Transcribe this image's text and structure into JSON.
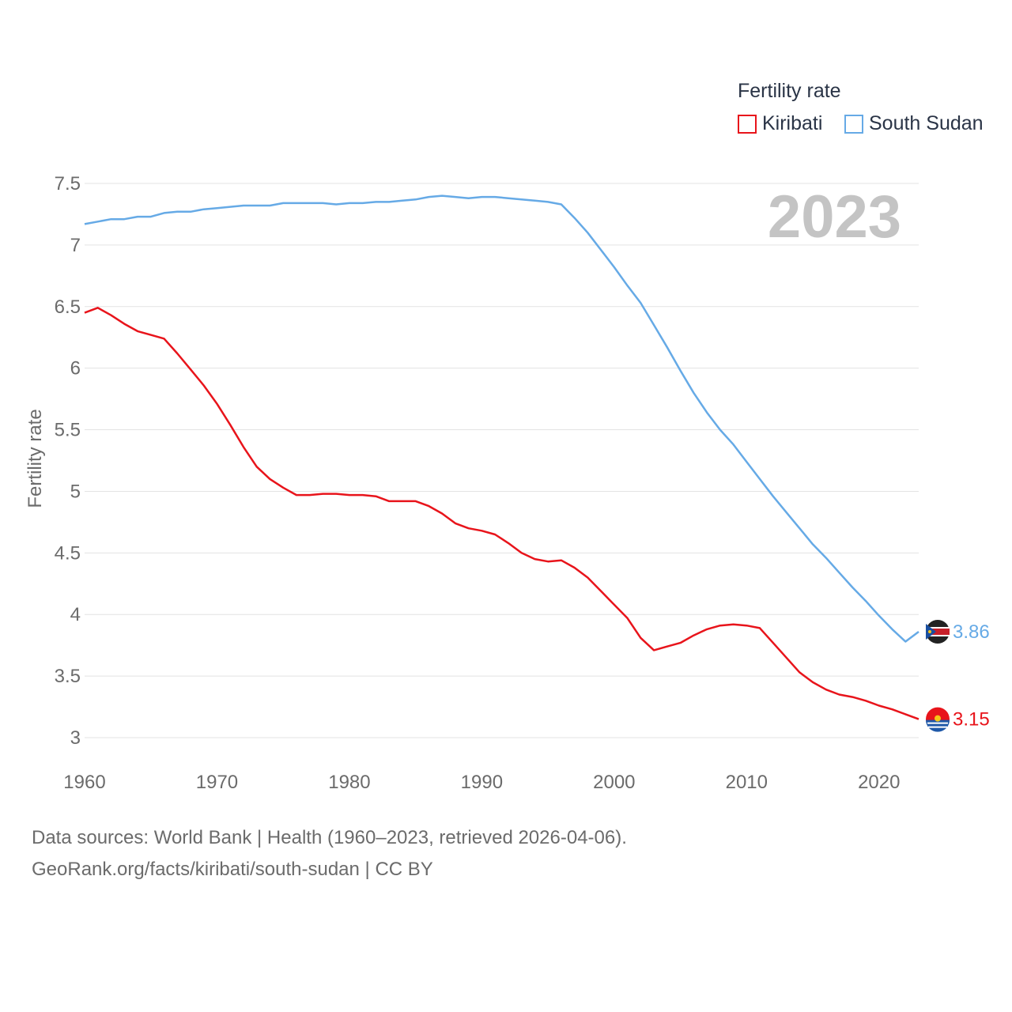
{
  "legend": {
    "title": "Fertility rate",
    "items": [
      {
        "label": "Kiribati",
        "color": "#e8141b"
      },
      {
        "label": "South Sudan",
        "color": "#66aae6"
      }
    ]
  },
  "year_label": "2023",
  "footer": {
    "line1": "Data sources: World Bank | Health (1960–2023, retrieved 2026-04-06).",
    "line2": "GeoRank.org/facts/kiribati/south-sudan | CC BY"
  },
  "chart_data": {
    "type": "line",
    "title": "Fertility rate",
    "xlabel": "",
    "ylabel": "Fertility rate",
    "xlim": [
      1960,
      2023
    ],
    "ylim": [
      3,
      7.5
    ],
    "x_ticks": [
      1960,
      1970,
      1980,
      1990,
      2000,
      2010,
      2020
    ],
    "y_ticks": [
      3,
      3.5,
      4,
      4.5,
      5,
      5.5,
      6,
      6.5,
      7,
      7.5
    ],
    "y_tick_labels": [
      "3",
      "3.5",
      "4",
      "4.5",
      "5",
      "5.5",
      "6",
      "6.5",
      "7",
      "7.5"
    ],
    "x": [
      1960,
      1961,
      1962,
      1963,
      1964,
      1965,
      1966,
      1967,
      1968,
      1969,
      1970,
      1971,
      1972,
      1973,
      1974,
      1975,
      1976,
      1977,
      1978,
      1979,
      1980,
      1981,
      1982,
      1983,
      1984,
      1985,
      1986,
      1987,
      1988,
      1989,
      1990,
      1991,
      1992,
      1993,
      1994,
      1995,
      1996,
      1997,
      1998,
      1999,
      2000,
      2001,
      2002,
      2003,
      2004,
      2005,
      2006,
      2007,
      2008,
      2009,
      2010,
      2011,
      2012,
      2013,
      2014,
      2015,
      2016,
      2017,
      2018,
      2019,
      2020,
      2021,
      2022,
      2023
    ],
    "series": [
      {
        "name": "Kiribati",
        "color": "#e8141b",
        "end_label": "3.15",
        "values": [
          6.45,
          6.49,
          6.43,
          6.36,
          6.3,
          6.27,
          6.24,
          6.12,
          5.99,
          5.86,
          5.71,
          5.54,
          5.36,
          5.2,
          5.1,
          5.03,
          4.97,
          4.97,
          4.98,
          4.98,
          4.97,
          4.97,
          4.96,
          4.92,
          4.92,
          4.92,
          4.88,
          4.82,
          4.74,
          4.7,
          4.68,
          4.65,
          4.58,
          4.5,
          4.45,
          4.43,
          4.44,
          4.38,
          4.3,
          4.19,
          4.08,
          3.97,
          3.81,
          3.71,
          3.74,
          3.77,
          3.83,
          3.88,
          3.91,
          3.92,
          3.91,
          3.89,
          3.77,
          3.65,
          3.53,
          3.45,
          3.39,
          3.35,
          3.33,
          3.3,
          3.26,
          3.23,
          3.19,
          3.15
        ]
      },
      {
        "name": "South Sudan",
        "color": "#66aae6",
        "end_label": "3.86",
        "values": [
          7.17,
          7.19,
          7.21,
          7.21,
          7.23,
          7.23,
          7.26,
          7.27,
          7.27,
          7.29,
          7.3,
          7.31,
          7.32,
          7.32,
          7.32,
          7.34,
          7.34,
          7.34,
          7.34,
          7.33,
          7.34,
          7.34,
          7.35,
          7.35,
          7.36,
          7.37,
          7.39,
          7.4,
          7.39,
          7.38,
          7.39,
          7.39,
          7.38,
          7.37,
          7.36,
          7.35,
          7.33,
          7.22,
          7.1,
          6.96,
          6.82,
          6.67,
          6.53,
          6.35,
          6.17,
          5.98,
          5.8,
          5.64,
          5.5,
          5.38,
          5.24,
          5.1,
          4.96,
          4.83,
          4.7,
          4.57,
          4.46,
          4.34,
          4.22,
          4.11,
          3.99,
          3.88,
          3.78,
          3.86
        ]
      }
    ]
  }
}
